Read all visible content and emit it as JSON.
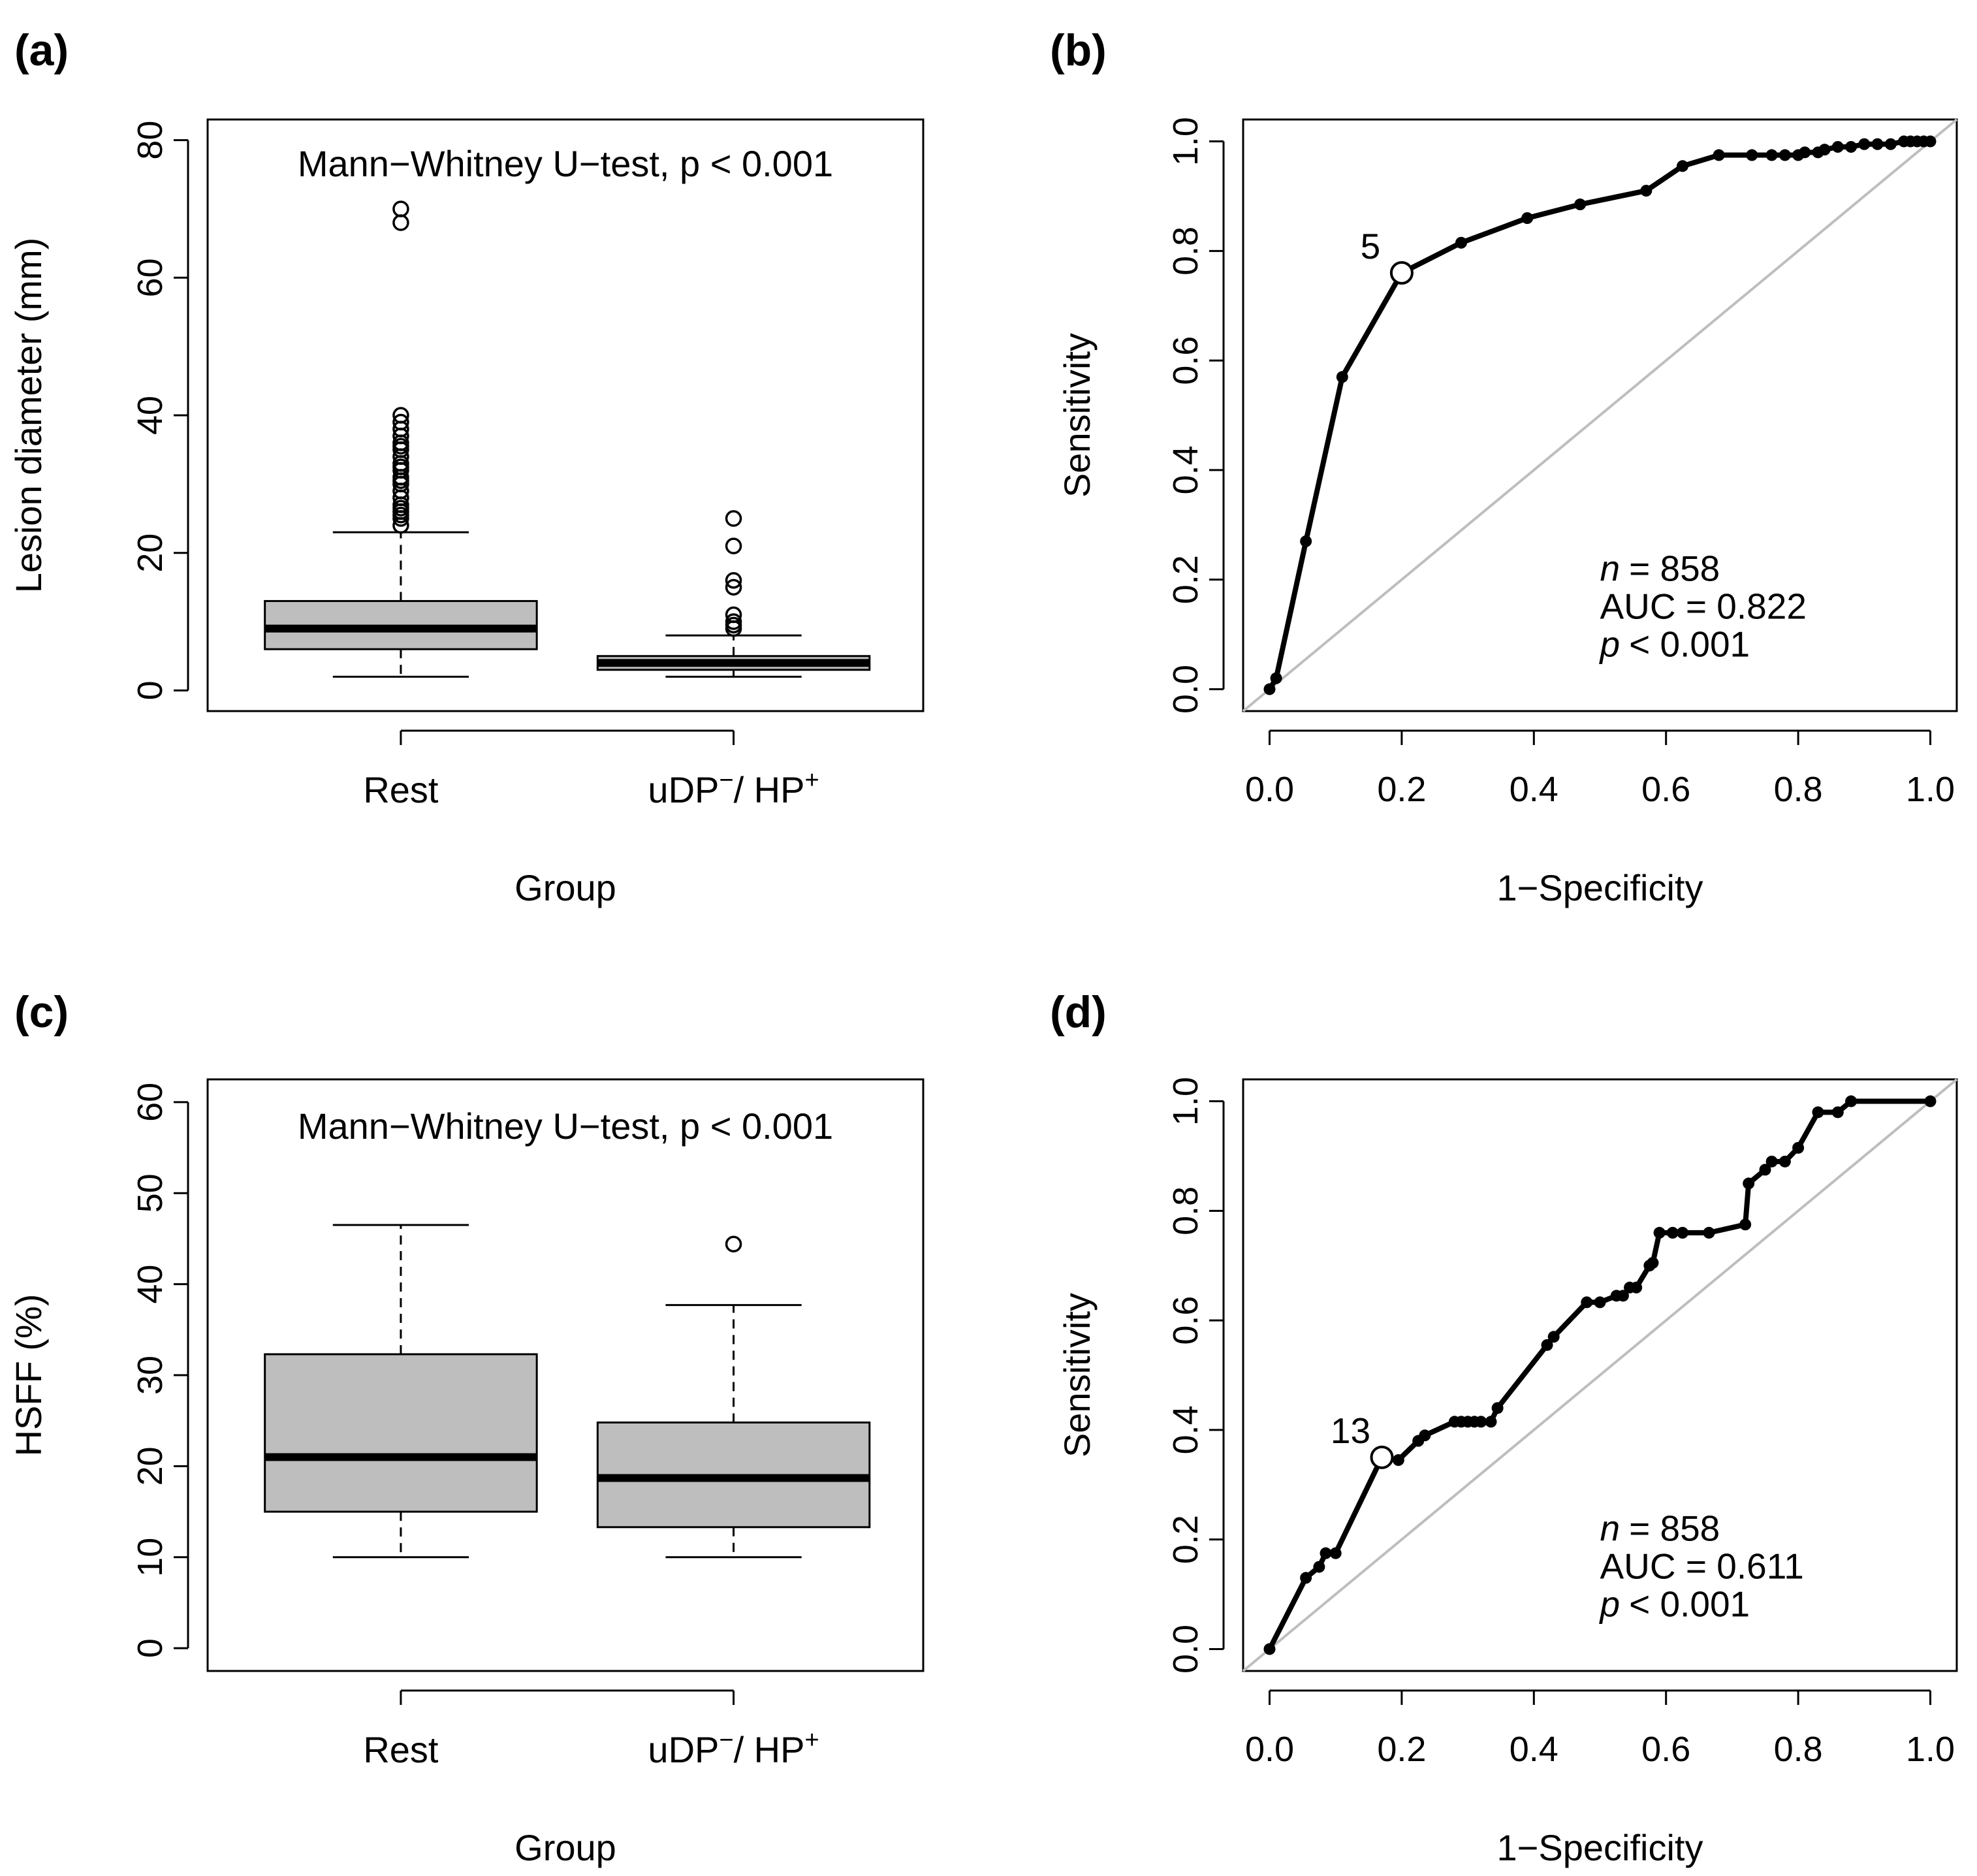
{
  "figure": {
    "panels": [
      {
        "id": "a",
        "label": "(a)"
      },
      {
        "id": "b",
        "label": "(b)"
      },
      {
        "id": "c",
        "label": "(c)"
      },
      {
        "id": "d",
        "label": "(d)"
      }
    ]
  },
  "chart_data": [
    {
      "panel": "(a)",
      "type": "boxplot",
      "title": "",
      "annotation": "Mann−Whitney U−test, p < 0.001",
      "xlabel": "Group",
      "ylabel": "Lesion diameter (mm)",
      "ylim": [
        -3,
        83
      ],
      "yticks": [
        0,
        20,
        40,
        60,
        80
      ],
      "groups": [
        {
          "name": "Rest",
          "superscripts": null,
          "whisker_low": 2,
          "q1": 6,
          "median": 9,
          "q3": 13,
          "whisker_high": 23,
          "outliers": [
            24,
            25,
            25.5,
            26,
            26.5,
            27,
            28,
            29,
            30,
            30.5,
            31,
            32,
            32.5,
            33,
            34,
            35,
            35.5,
            36,
            37,
            38,
            39,
            40,
            68,
            70
          ]
        },
        {
          "name": "uDP",
          "superscripts": {
            "a": "−",
            "sep": "/ HP",
            "b": "+"
          },
          "whisker_low": 2,
          "q1": 3,
          "median": 4,
          "q3": 5,
          "whisker_high": 8,
          "outliers": [
            9,
            9.5,
            10,
            11,
            15,
            16,
            21,
            25
          ]
        }
      ]
    },
    {
      "panel": "(b)",
      "type": "line",
      "subtype": "roc",
      "xlabel": "1−Specificity",
      "ylabel": "Sensitivity",
      "xlim": [
        0,
        1
      ],
      "ylim": [
        0,
        1
      ],
      "xticks": [
        "0.0",
        "0.2",
        "0.4",
        "0.6",
        "0.8",
        "1.0"
      ],
      "yticks": [
        "0.0",
        "0.2",
        "0.4",
        "0.6",
        "0.8",
        "1.0"
      ],
      "reference_line": "diagonal",
      "series": [
        {
          "name": "ROC",
          "x": [
            0,
            0.01,
            0.055,
            0.11,
            0.2,
            0.29,
            0.39,
            0.47,
            0.57,
            0.625,
            0.68,
            0.73,
            0.76,
            0.78,
            0.8,
            0.81,
            0.83,
            0.84,
            0.86,
            0.88,
            0.9,
            0.92,
            0.94,
            0.96,
            0.97,
            0.98,
            0.99,
            1.0
          ],
          "y": [
            0,
            0.02,
            0.27,
            0.57,
            0.76,
            0.815,
            0.86,
            0.885,
            0.91,
            0.955,
            0.975,
            0.975,
            0.975,
            0.975,
            0.975,
            0.98,
            0.98,
            0.985,
            0.99,
            0.99,
            0.995,
            0.995,
            0.995,
            1.0,
            1.0,
            1.0,
            1.0,
            1.0
          ]
        }
      ],
      "cutoff": {
        "x": 0.2,
        "y": 0.76,
        "label": "5"
      },
      "stats": {
        "n_var": "n",
        "n_value": "= 858",
        "auc": "AUC =  0.822",
        "p_var": "p",
        "p_value": "< 0.001"
      }
    },
    {
      "panel": "(c)",
      "type": "boxplot",
      "title": "",
      "annotation": "Mann−Whitney U−test, p < 0.001",
      "xlabel": "Group",
      "ylabel": "HSFF (%)",
      "ylim": [
        -2.5,
        62.5
      ],
      "yticks": [
        0,
        10,
        20,
        30,
        40,
        50,
        60
      ],
      "groups": [
        {
          "name": "Rest",
          "superscripts": null,
          "whisker_low": 10,
          "q1": 15,
          "median": 21,
          "q3": 32.3,
          "whisker_high": 46.5,
          "outliers": []
        },
        {
          "name": "uDP",
          "superscripts": {
            "a": "−",
            "sep": "/ HP",
            "b": "+"
          },
          "whisker_low": 10,
          "q1": 13.3,
          "median": 18.7,
          "q3": 24.8,
          "whisker_high": 37.7,
          "outliers": [
            44.4
          ]
        }
      ]
    },
    {
      "panel": "(d)",
      "type": "line",
      "subtype": "roc",
      "xlabel": "1−Specificity",
      "ylabel": "Sensitivity",
      "xlim": [
        0,
        1
      ],
      "ylim": [
        0,
        1
      ],
      "xticks": [
        "0.0",
        "0.2",
        "0.4",
        "0.6",
        "0.8",
        "1.0"
      ],
      "yticks": [
        "0.0",
        "0.2",
        "0.4",
        "0.6",
        "0.8",
        "1.0"
      ],
      "reference_line": "diagonal",
      "series": [
        {
          "name": "ROC",
          "x": [
            0,
            0.055,
            0.075,
            0.085,
            0.1,
            0.17,
            0.195,
            0.225,
            0.235,
            0.28,
            0.29,
            0.3,
            0.31,
            0.32,
            0.335,
            0.345,
            0.42,
            0.43,
            0.48,
            0.5,
            0.525,
            0.535,
            0.545,
            0.555,
            0.575,
            0.58,
            0.59,
            0.61,
            0.625,
            0.665,
            0.72,
            0.725,
            0.75,
            0.76,
            0.78,
            0.8,
            0.83,
            0.86,
            0.88,
            1.0
          ],
          "y": [
            0,
            0.13,
            0.15,
            0.175,
            0.175,
            0.35,
            0.345,
            0.38,
            0.39,
            0.415,
            0.415,
            0.415,
            0.415,
            0.415,
            0.415,
            0.44,
            0.555,
            0.57,
            0.633,
            0.633,
            0.645,
            0.645,
            0.66,
            0.66,
            0.7,
            0.705,
            0.76,
            0.76,
            0.76,
            0.76,
            0.775,
            0.85,
            0.875,
            0.89,
            0.89,
            0.915,
            0.98,
            0.98,
            1.0,
            1.0
          ]
        }
      ],
      "cutoff": {
        "x": 0.17,
        "y": 0.35,
        "label": "13"
      },
      "stats": {
        "n_var": "n",
        "n_value": "= 858",
        "auc": "AUC =  0.611",
        "p_var": "p",
        "p_value": "< 0.001"
      }
    }
  ]
}
